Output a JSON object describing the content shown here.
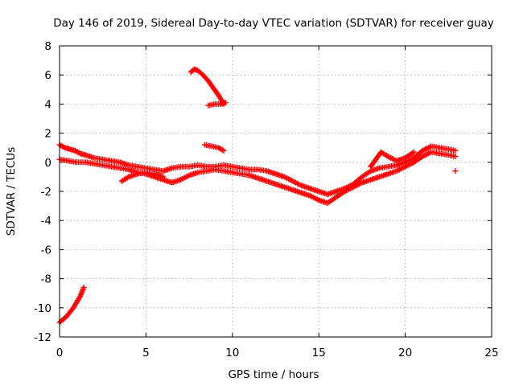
{
  "chart_data": {
    "type": "scatter",
    "title": "Day 146 of 2019, Sidereal Day-to-day VTEC variation (SDTVAR) for receiver guay",
    "xlabel": "GPS time / hours",
    "ylabel": "SDTVAR / TECUs",
    "xlim": [
      0,
      25
    ],
    "ylim": [
      -12,
      8
    ],
    "xticks": [
      0,
      5,
      10,
      15,
      20,
      25
    ],
    "yticks": [
      -12,
      -10,
      -8,
      -6,
      -4,
      -2,
      0,
      2,
      4,
      6,
      8
    ],
    "grid": true,
    "marker": "+",
    "color": "#ff0000",
    "series": [
      {
        "name": "trace-a",
        "x": [
          0.0,
          0.3,
          0.6,
          0.9,
          1.2,
          1.5,
          2.0,
          2.5,
          3.0,
          3.5,
          4.0,
          4.5,
          5.0,
          5.5,
          6.0,
          6.5,
          7.0,
          7.5,
          8.0,
          8.5,
          9.0,
          9.5,
          10.0,
          10.5,
          11.0,
          11.5,
          12.0,
          12.5,
          13.0,
          13.5,
          14.0,
          14.5,
          15.0,
          15.5,
          16.0,
          16.5,
          17.0,
          17.5,
          18.0,
          18.5,
          19.0,
          19.5,
          20.0,
          20.5,
          21.0,
          21.5,
          22.0,
          22.5,
          22.9
        ],
        "y": [
          1.2,
          1.0,
          0.9,
          0.8,
          0.6,
          0.5,
          0.3,
          0.2,
          0.1,
          0.0,
          -0.2,
          -0.3,
          -0.4,
          -0.5,
          -0.6,
          -0.4,
          -0.3,
          -0.3,
          -0.2,
          -0.3,
          -0.3,
          -0.2,
          -0.3,
          -0.4,
          -0.5,
          -0.5,
          -0.6,
          -0.8,
          -1.0,
          -1.3,
          -1.6,
          -1.8,
          -2.0,
          -2.2,
          -2.0,
          -1.8,
          -1.5,
          -1.0,
          -0.6,
          -0.4,
          -0.3,
          -0.2,
          0.0,
          0.3,
          0.8,
          1.1,
          1.0,
          0.9,
          0.8
        ]
      },
      {
        "name": "trace-b",
        "x": [
          0.0,
          0.5,
          1.0,
          1.5,
          2.0,
          2.5,
          3.0,
          3.5,
          4.0,
          4.5,
          5.0,
          5.5,
          6.0,
          6.5,
          7.0,
          7.5,
          8.0,
          8.5,
          9.0,
          9.5,
          10.0,
          10.5,
          11.0,
          11.5,
          12.0,
          12.5,
          13.0,
          13.5,
          14.0,
          14.5,
          15.0,
          15.5,
          16.0,
          16.5,
          17.0,
          17.5,
          18.0,
          18.5,
          19.0,
          19.5,
          20.0,
          20.5,
          21.0,
          21.5,
          22.0,
          22.5,
          22.9
        ],
        "y": [
          0.2,
          0.1,
          0.0,
          0.0,
          -0.1,
          -0.2,
          -0.3,
          -0.4,
          -0.5,
          -0.7,
          -0.8,
          -1.0,
          -1.2,
          -1.4,
          -1.2,
          -0.9,
          -0.7,
          -0.6,
          -0.5,
          -0.6,
          -0.7,
          -0.8,
          -0.9,
          -1.1,
          -1.3,
          -1.5,
          -1.7,
          -1.9,
          -2.1,
          -2.3,
          -2.6,
          -2.8,
          -2.4,
          -2.0,
          -1.7,
          -1.4,
          -1.2,
          -1.0,
          -0.8,
          -0.6,
          -0.3,
          0.0,
          0.4,
          0.7,
          0.6,
          0.5,
          0.4
        ]
      },
      {
        "name": "trace-c",
        "x": [
          0.0,
          0.4,
          0.8,
          1.2,
          1.4
        ],
        "y": [
          -11.0,
          -10.6,
          -10.0,
          -9.2,
          -8.6
        ]
      },
      {
        "name": "trace-d",
        "x": [
          7.6,
          7.8,
          8.0,
          8.3,
          8.6,
          8.9,
          9.2,
          9.5
        ],
        "y": [
          6.2,
          6.4,
          6.3,
          6.0,
          5.6,
          5.1,
          4.6,
          4.0
        ]
      },
      {
        "name": "trace-e",
        "x": [
          8.6,
          9.0,
          9.3,
          9.6
        ],
        "y": [
          3.9,
          4.0,
          4.0,
          4.1
        ]
      },
      {
        "name": "trace-f",
        "x": [
          8.4,
          8.8,
          9.2,
          9.5
        ],
        "y": [
          1.2,
          1.1,
          1.0,
          0.8
        ]
      },
      {
        "name": "trace-g",
        "x": [
          3.6,
          4.0,
          4.5,
          5.0,
          5.5,
          6.0
        ],
        "y": [
          -1.3,
          -1.0,
          -0.8,
          -0.7,
          -0.8,
          -1.0
        ]
      },
      {
        "name": "trace-h",
        "x": [
          18.0,
          18.3,
          18.6,
          19.0,
          19.5,
          20.0,
          20.5
        ],
        "y": [
          -0.3,
          0.2,
          0.7,
          0.4,
          0.1,
          0.3,
          0.7
        ]
      },
      {
        "name": "trace-i",
        "x": [
          22.9
        ],
        "y": [
          -0.6
        ]
      }
    ]
  }
}
